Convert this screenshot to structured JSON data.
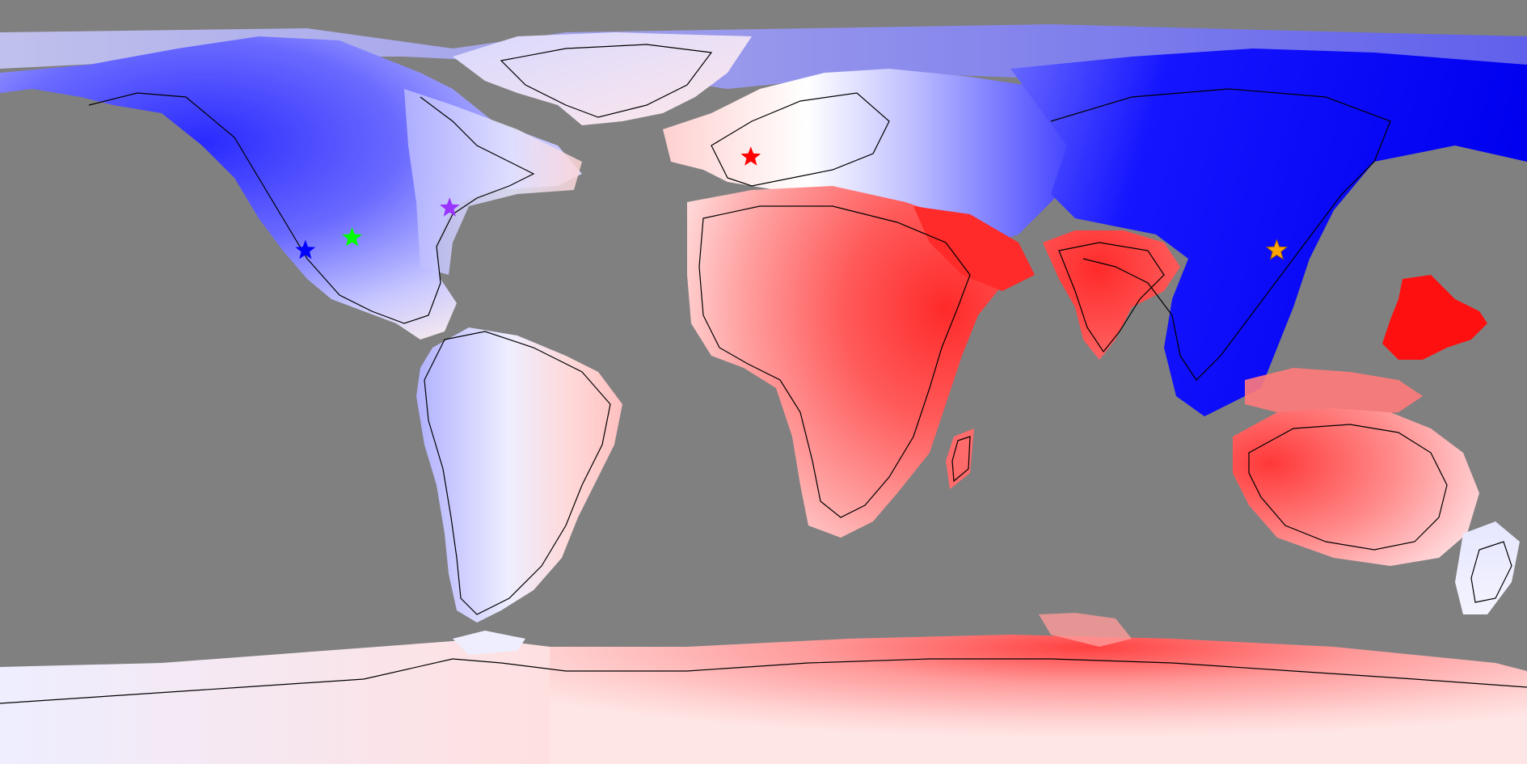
{
  "map": {
    "projection": "equirectangular",
    "ocean_color": "#808080",
    "coastline_color": "#000000",
    "color_scale": {
      "negative": "#0000ff",
      "neutral": "#ffffff",
      "positive": "#ff0000"
    },
    "markers": [
      {
        "name": "blue-star",
        "icon": "star-icon",
        "color": "#0000ff",
        "lon": -108,
        "lat": 31
      },
      {
        "name": "green-star",
        "icon": "star-icon",
        "color": "#00ff00",
        "lon": -97,
        "lat": 34
      },
      {
        "name": "purple-star",
        "icon": "star-icon",
        "color": "#9933ff",
        "lon": -74,
        "lat": 41
      },
      {
        "name": "red-star",
        "icon": "star-icon",
        "color": "#ff0000",
        "lon": -3,
        "lat": 53
      },
      {
        "name": "orange-star",
        "icon": "star-icon",
        "color": "#ffa500",
        "lon": 121,
        "lat": 31
      }
    ]
  }
}
